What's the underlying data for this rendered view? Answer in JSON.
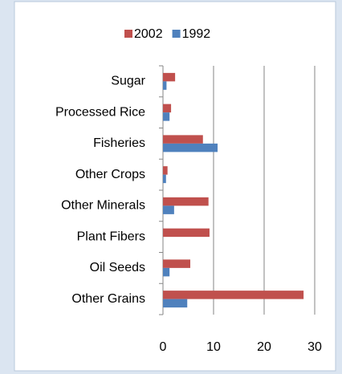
{
  "chart_data": {
    "type": "hbar",
    "categories": [
      "Sugar",
      "Processed Rice",
      "Fisheries",
      "Other Crops",
      "Other Minerals",
      "Plant Fibers",
      "Oil Seeds",
      "Other Grains"
    ],
    "series": [
      {
        "name": "2002",
        "color": "#c0504d",
        "values": [
          2.4,
          1.6,
          7.9,
          0.9,
          9.0,
          9.2,
          5.4,
          27.8
        ]
      },
      {
        "name": "1992",
        "color": "#4f81bd",
        "values": [
          0.7,
          1.3,
          10.8,
          0.6,
          2.2,
          0,
          1.3,
          4.8
        ]
      }
    ],
    "xlim": [
      0,
      30
    ],
    "xticks": [
      0,
      10,
      20,
      30
    ],
    "grid": true
  }
}
